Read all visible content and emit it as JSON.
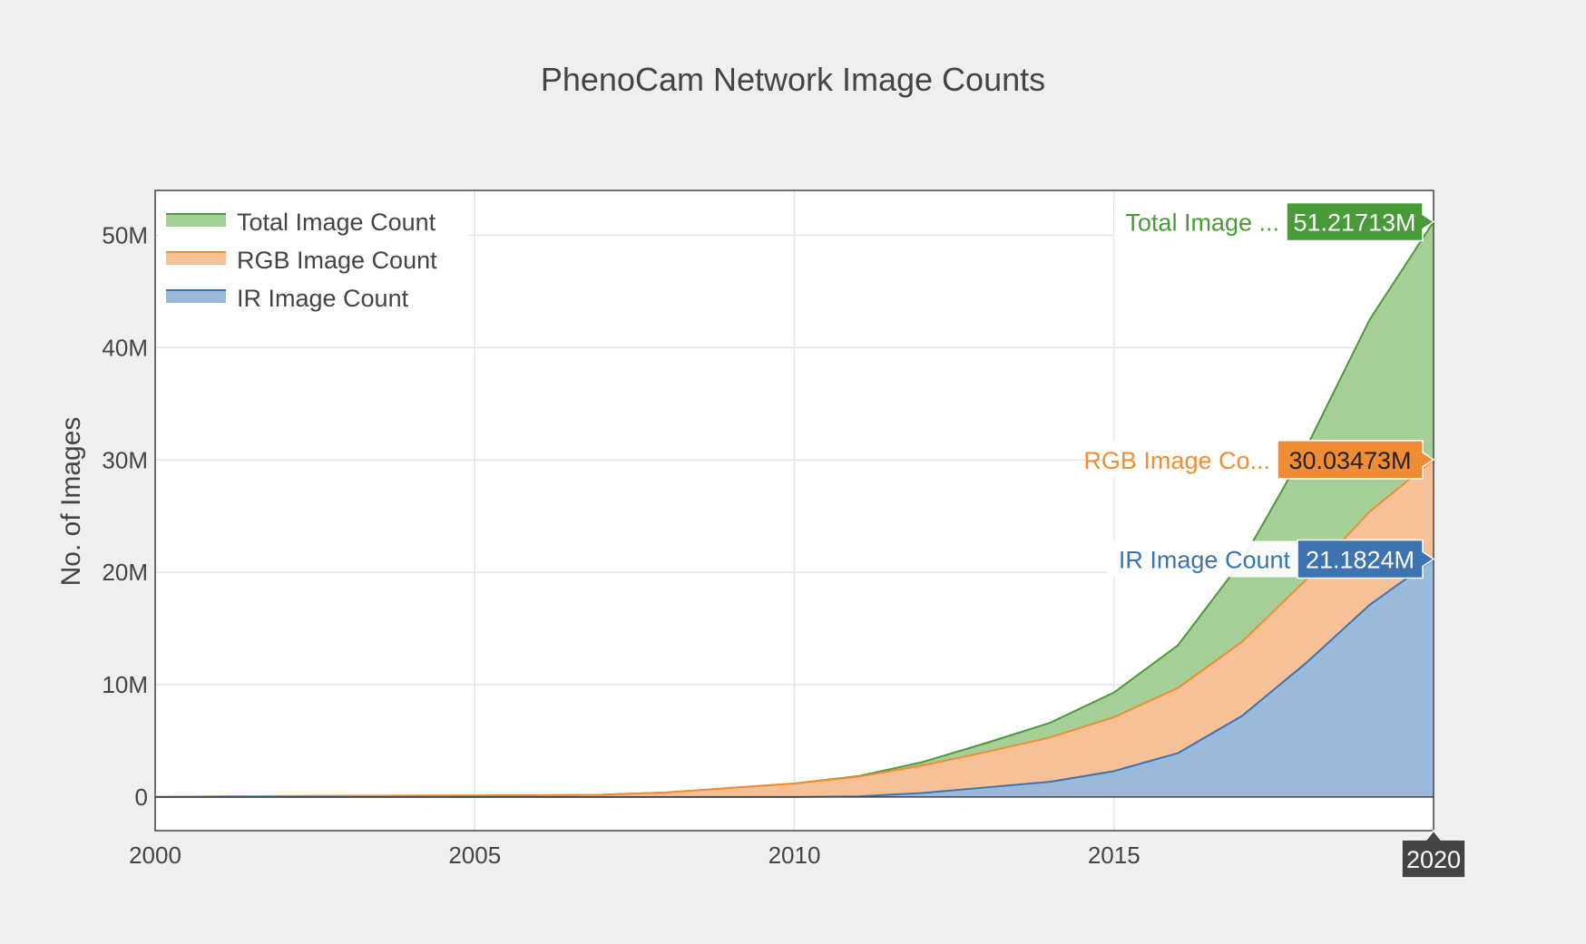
{
  "chart_data": {
    "type": "area",
    "title": "PhenoCam Network Image Counts",
    "xlabel": "",
    "ylabel": "No. of Images",
    "xlim": [
      2000,
      2020
    ],
    "ylim": [
      -3000000,
      54000000
    ],
    "x_ticks": [
      2000,
      2005,
      2010,
      2015,
      2020
    ],
    "x_tick_labels": [
      "2000",
      "2005",
      "2010",
      "2015",
      "2020"
    ],
    "y_ticks": [
      0,
      10000000,
      20000000,
      30000000,
      40000000,
      50000000
    ],
    "y_tick_labels": [
      "0",
      "10M",
      "20M",
      "30M",
      "40M",
      "50M"
    ],
    "grid": true,
    "legend_position": "top-left",
    "x": [
      2000,
      2001,
      2002,
      2003,
      2004,
      2005,
      2006,
      2007,
      2008,
      2009,
      2010,
      2011,
      2012,
      2013,
      2014,
      2015,
      2016,
      2017,
      2018,
      2019,
      2020
    ],
    "series": [
      {
        "name": "Total Image Count",
        "line_color": "#4a9a3a",
        "fill_color": "#a6cf98",
        "values": [
          0,
          50000,
          80000,
          100000,
          120000,
          130000,
          150000,
          200000,
          400000,
          800000,
          1200000,
          1850000,
          3100000,
          4800000,
          6600000,
          9300000,
          13500000,
          21000000,
          31000000,
          42500000,
          51217130
        ],
        "hover_label": "Total Image ...",
        "hover_value": "51.21713M"
      },
      {
        "name": "RGB Image Count",
        "line_color": "#f08c33",
        "fill_color": "#f6c196",
        "values": [
          0,
          50000,
          80000,
          100000,
          120000,
          130000,
          150000,
          200000,
          400000,
          800000,
          1200000,
          1800000,
          2800000,
          4000000,
          5300000,
          7100000,
          9700000,
          13800000,
          19300000,
          25400000,
          30034730
        ],
        "hover_label": "RGB Image Co...",
        "hover_value": "30.03473M"
      },
      {
        "name": "IR Image Count",
        "line_color": "#3d73b0",
        "fill_color": "#9ab9db",
        "values": [
          0,
          0,
          0,
          0,
          0,
          0,
          0,
          0,
          0,
          0,
          0,
          50000,
          350000,
          850000,
          1350000,
          2300000,
          3900000,
          7200000,
          11900000,
          17100000,
          21182400
        ],
        "hover_label": "IR Image Count",
        "hover_value": "21.1824M"
      }
    ],
    "hover_x_label": "2020"
  }
}
